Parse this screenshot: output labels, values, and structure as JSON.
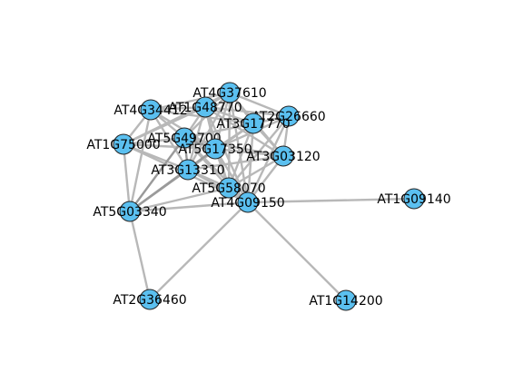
{
  "graph": {
    "node_color": "#5bc0f0",
    "edge_color": "#b8b8b8",
    "nodes": [
      {
        "id": "AT4G37610",
        "label": "AT4G37610"
      },
      {
        "id": "AT4G34412",
        "label": "AT4G34412"
      },
      {
        "id": "AT1G48770",
        "label": "AT1G48770"
      },
      {
        "id": "AT2G26660",
        "label": "AT2G26660"
      },
      {
        "id": "AT3G17770",
        "label": "AT3G17770"
      },
      {
        "id": "AT1G75000",
        "label": "AT1G75000"
      },
      {
        "id": "AT5G49700",
        "label": "AT5G49700"
      },
      {
        "id": "AT5G17350",
        "label": "AT5G17350"
      },
      {
        "id": "AT3G03120",
        "label": "AT3G03120"
      },
      {
        "id": "AT3G13310",
        "label": "AT3G13310"
      },
      {
        "id": "AT5G58070",
        "label": "AT5G58070"
      },
      {
        "id": "AT4G09150",
        "label": "AT4G09150"
      },
      {
        "id": "AT1G09140",
        "label": "AT1G09140"
      },
      {
        "id": "AT5G03340",
        "label": "AT5G03340"
      },
      {
        "id": "AT2G36460",
        "label": "AT2G36460"
      },
      {
        "id": "AT1G14200",
        "label": "AT1G14200"
      }
    ]
  }
}
